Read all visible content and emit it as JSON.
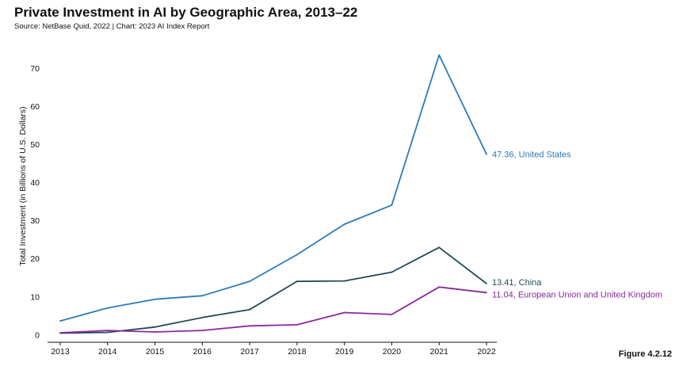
{
  "header": {
    "title": "Private Investment in AI by Geographic Area, 2013–22",
    "subtitle": "Source: NetBase Quid, 2022 | Chart: 2023 AI Index Report"
  },
  "figure_label": "Figure 4.2.12",
  "chart_data": {
    "type": "line",
    "title": "Private Investment in AI by Geographic Area, 2013–22",
    "xlabel": "",
    "ylabel": "Total Investment (in Billions of U.S. Dollars)",
    "x": [
      "2013",
      "2014",
      "2015",
      "2016",
      "2017",
      "2018",
      "2019",
      "2020",
      "2021",
      "2022"
    ],
    "ylim": [
      -2,
      76
    ],
    "yticks": [
      0,
      10,
      20,
      30,
      40,
      50,
      60,
      70
    ],
    "grid": false,
    "series": [
      {
        "name": "United States",
        "label": "47.36, United States",
        "color": "#2b7bb9",
        "values": [
          3.6,
          7.0,
          9.3,
          10.2,
          14.0,
          21.0,
          29.0,
          34.0,
          73.4,
          47.36
        ]
      },
      {
        "name": "China",
        "label": "13.41, China",
        "color": "#1f4a56",
        "values": [
          0.4,
          0.6,
          2.0,
          4.5,
          6.6,
          14.0,
          14.1,
          16.4,
          22.9,
          13.41
        ]
      },
      {
        "name": "European Union and United Kingdom",
        "label": "11.04, European Union and United Kingdom",
        "color": "#8a2a9c",
        "values": [
          0.5,
          1.1,
          0.7,
          1.1,
          2.3,
          2.6,
          5.8,
          5.3,
          12.5,
          11.04
        ]
      }
    ]
  }
}
